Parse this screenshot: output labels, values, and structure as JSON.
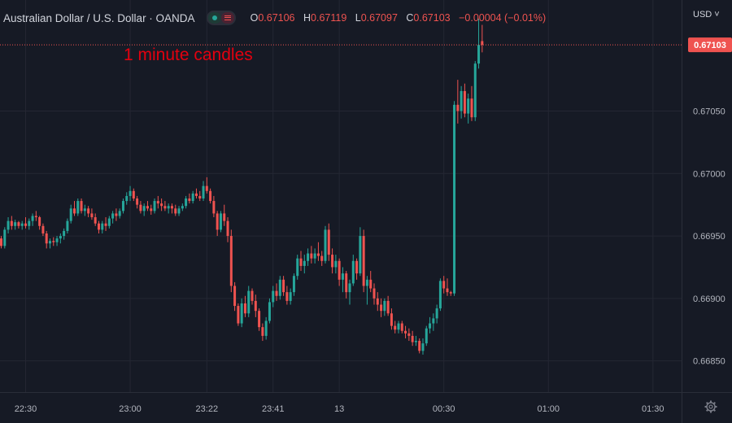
{
  "header": {
    "symbol": "Australian Dollar / U.S. Dollar · OANDA",
    "ohlc": [
      {
        "key": "O",
        "value": "0.67106"
      },
      {
        "key": "H",
        "value": "0.67119"
      },
      {
        "key": "L",
        "value": "0.67097"
      },
      {
        "key": "C",
        "value": "0.67103"
      }
    ],
    "change": "−0.00004 (−0.01%)"
  },
  "annotation": "1 minute candles",
  "currency_selector": "USD",
  "colors": {
    "up": "#26a69a",
    "down": "#ef5350",
    "background": "#161a25",
    "grid": "#242733",
    "annotation": "#e3000f"
  },
  "chart_data": {
    "type": "candlestick",
    "ylim": [
      0.66825,
      0.67135
    ],
    "y_ticks": [
      "0.66850",
      "0.66900",
      "0.66950",
      "0.67000",
      "0.67050"
    ],
    "x_ticks": [
      {
        "label": "22:30",
        "index": 7
      },
      {
        "label": "23:00",
        "index": 37
      },
      {
        "label": "23:22",
        "index": 59
      },
      {
        "label": "23:41",
        "index": 78
      },
      {
        "label": "13",
        "index": 97
      },
      {
        "label": "00:30",
        "index": 127
      },
      {
        "label": "01:00",
        "index": 157
      },
      {
        "label": "01:30",
        "index": 187
      }
    ],
    "last_price": "0.67103",
    "last_price_value": 0.67103,
    "grid": true,
    "candles": [
      [
        0.66948,
        0.6695,
        0.6694,
        0.66942
      ],
      [
        0.66942,
        0.66957,
        0.6694,
        0.66955
      ],
      [
        0.66955,
        0.66965,
        0.66952,
        0.66962
      ],
      [
        0.66962,
        0.66966,
        0.66955,
        0.66958
      ],
      [
        0.66958,
        0.66963,
        0.66955,
        0.66961
      ],
      [
        0.66961,
        0.66962,
        0.66956,
        0.66958
      ],
      [
        0.66958,
        0.66962,
        0.66955,
        0.6696
      ],
      [
        0.6696,
        0.66965,
        0.66956,
        0.66958
      ],
      [
        0.66958,
        0.66964,
        0.66955,
        0.66962
      ],
      [
        0.66962,
        0.66968,
        0.66958,
        0.66966
      ],
      [
        0.66966,
        0.6697,
        0.66962,
        0.66965
      ],
      [
        0.66965,
        0.66966,
        0.66955,
        0.66958
      ],
      [
        0.66958,
        0.6696,
        0.6695,
        0.66952
      ],
      [
        0.66952,
        0.66954,
        0.6694,
        0.66944
      ],
      [
        0.66944,
        0.66948,
        0.6694,
        0.66946
      ],
      [
        0.66946,
        0.66949,
        0.66942,
        0.66945
      ],
      [
        0.66945,
        0.6695,
        0.66942,
        0.66948
      ],
      [
        0.66948,
        0.66952,
        0.66944,
        0.6695
      ],
      [
        0.6695,
        0.66956,
        0.66947,
        0.66954
      ],
      [
        0.66954,
        0.66964,
        0.66952,
        0.66962
      ],
      [
        0.66962,
        0.66975,
        0.6696,
        0.66972
      ],
      [
        0.66972,
        0.66978,
        0.66966,
        0.66968
      ],
      [
        0.66968,
        0.6698,
        0.66966,
        0.66978
      ],
      [
        0.66978,
        0.6698,
        0.66968,
        0.6697
      ],
      [
        0.6697,
        0.66975,
        0.66966,
        0.66972
      ],
      [
        0.66972,
        0.66974,
        0.66965,
        0.66968
      ],
      [
        0.66968,
        0.66972,
        0.66963,
        0.66965
      ],
      [
        0.66965,
        0.66968,
        0.66958,
        0.6696
      ],
      [
        0.6696,
        0.66962,
        0.66952,
        0.66955
      ],
      [
        0.66955,
        0.66962,
        0.66952,
        0.6696
      ],
      [
        0.6696,
        0.66965,
        0.66954,
        0.66958
      ],
      [
        0.66958,
        0.66966,
        0.66956,
        0.66964
      ],
      [
        0.66964,
        0.6697,
        0.6696,
        0.66968
      ],
      [
        0.66968,
        0.66972,
        0.66962,
        0.66966
      ],
      [
        0.66966,
        0.66972,
        0.66964,
        0.6697
      ],
      [
        0.6697,
        0.6698,
        0.66968,
        0.66978
      ],
      [
        0.66978,
        0.66985,
        0.66975,
        0.66982
      ],
      [
        0.66982,
        0.6699,
        0.66978,
        0.66986
      ],
      [
        0.66986,
        0.66988,
        0.66978,
        0.6698
      ],
      [
        0.6698,
        0.66982,
        0.66972,
        0.66975
      ],
      [
        0.66975,
        0.66978,
        0.66968,
        0.6697
      ],
      [
        0.6697,
        0.66976,
        0.66966,
        0.66974
      ],
      [
        0.66974,
        0.66978,
        0.6697,
        0.66972
      ],
      [
        0.66972,
        0.66975,
        0.66967,
        0.6697
      ],
      [
        0.6697,
        0.6698,
        0.66968,
        0.66978
      ],
      [
        0.66978,
        0.66982,
        0.66972,
        0.66976
      ],
      [
        0.66976,
        0.6698,
        0.6697,
        0.66974
      ],
      [
        0.66974,
        0.66978,
        0.6697,
        0.66972
      ],
      [
        0.66972,
        0.66976,
        0.66968,
        0.66974
      ],
      [
        0.66974,
        0.66976,
        0.66968,
        0.66972
      ],
      [
        0.66972,
        0.66975,
        0.66966,
        0.66968
      ],
      [
        0.66968,
        0.66974,
        0.66966,
        0.66972
      ],
      [
        0.66972,
        0.66976,
        0.6697,
        0.66974
      ],
      [
        0.66974,
        0.66982,
        0.66972,
        0.6698
      ],
      [
        0.6698,
        0.66984,
        0.66976,
        0.66978
      ],
      [
        0.66978,
        0.66986,
        0.66976,
        0.66984
      ],
      [
        0.66984,
        0.66988,
        0.6698,
        0.66982
      ],
      [
        0.66982,
        0.66986,
        0.66978,
        0.6698
      ],
      [
        0.6698,
        0.66994,
        0.66978,
        0.6699
      ],
      [
        0.6699,
        0.66997,
        0.66984,
        0.66986
      ],
      [
        0.66986,
        0.66988,
        0.66976,
        0.66978
      ],
      [
        0.66978,
        0.66982,
        0.66965,
        0.66968
      ],
      [
        0.66968,
        0.6697,
        0.6695,
        0.66955
      ],
      [
        0.66955,
        0.6697,
        0.66953,
        0.66968
      ],
      [
        0.66968,
        0.66975,
        0.66958,
        0.66962
      ],
      [
        0.66962,
        0.66965,
        0.66945,
        0.6695
      ],
      [
        0.6695,
        0.66955,
        0.66905,
        0.6691
      ],
      [
        0.6691,
        0.66913,
        0.6689,
        0.66894
      ],
      [
        0.66894,
        0.66896,
        0.66878,
        0.6688
      ],
      [
        0.6688,
        0.669,
        0.66877,
        0.66896
      ],
      [
        0.66896,
        0.66902,
        0.66885,
        0.66888
      ],
      [
        0.66888,
        0.6691,
        0.66885,
        0.66906
      ],
      [
        0.66906,
        0.66908,
        0.66895,
        0.66898
      ],
      [
        0.66898,
        0.66903,
        0.66885,
        0.6689
      ],
      [
        0.6689,
        0.66892,
        0.66874,
        0.66877
      ],
      [
        0.66877,
        0.6688,
        0.66866,
        0.6687
      ],
      [
        0.6687,
        0.66885,
        0.66867,
        0.66882
      ],
      [
        0.66882,
        0.669,
        0.6688,
        0.66897
      ],
      [
        0.66897,
        0.6691,
        0.66893,
        0.66906
      ],
      [
        0.66906,
        0.66912,
        0.66898,
        0.66902
      ],
      [
        0.66902,
        0.66918,
        0.66899,
        0.66915
      ],
      [
        0.66915,
        0.66918,
        0.66902,
        0.66905
      ],
      [
        0.66905,
        0.6691,
        0.66895,
        0.66898
      ],
      [
        0.66898,
        0.66908,
        0.66895,
        0.66905
      ],
      [
        0.66905,
        0.6692,
        0.66902,
        0.66918
      ],
      [
        0.66918,
        0.66935,
        0.66915,
        0.66932
      ],
      [
        0.66932,
        0.66938,
        0.66922,
        0.66926
      ],
      [
        0.66926,
        0.66935,
        0.6692,
        0.6693
      ],
      [
        0.6693,
        0.6694,
        0.66926,
        0.66936
      ],
      [
        0.66936,
        0.66942,
        0.66928,
        0.66932
      ],
      [
        0.66932,
        0.6694,
        0.66928,
        0.66936
      ],
      [
        0.66936,
        0.66945,
        0.6693,
        0.66934
      ],
      [
        0.66934,
        0.66938,
        0.66926,
        0.6693
      ],
      [
        0.6693,
        0.66958,
        0.66928,
        0.66955
      ],
      [
        0.66955,
        0.6696,
        0.6693,
        0.66935
      ],
      [
        0.66935,
        0.6694,
        0.6692,
        0.66925
      ],
      [
        0.66925,
        0.66935,
        0.6692,
        0.6693
      ],
      [
        0.6693,
        0.66932,
        0.6691,
        0.66915
      ],
      [
        0.66915,
        0.66925,
        0.66905,
        0.6692
      ],
      [
        0.6692,
        0.66922,
        0.669,
        0.66905
      ],
      [
        0.66905,
        0.66915,
        0.66895,
        0.66912
      ],
      [
        0.66912,
        0.66935,
        0.6691,
        0.6693
      ],
      [
        0.6693,
        0.66932,
        0.66915,
        0.6692
      ],
      [
        0.6692,
        0.66957,
        0.66918,
        0.6695
      ],
      [
        0.6695,
        0.66955,
        0.66905,
        0.6691
      ],
      [
        0.6691,
        0.66918,
        0.66895,
        0.66915
      ],
      [
        0.66915,
        0.66922,
        0.66905,
        0.66908
      ],
      [
        0.66908,
        0.66912,
        0.66895,
        0.669
      ],
      [
        0.669,
        0.66905,
        0.6689,
        0.66895
      ],
      [
        0.66895,
        0.669,
        0.66885,
        0.6689
      ],
      [
        0.6689,
        0.669,
        0.66886,
        0.66898
      ],
      [
        0.66898,
        0.66902,
        0.66886,
        0.66888
      ],
      [
        0.66888,
        0.66892,
        0.66875,
        0.66878
      ],
      [
        0.66878,
        0.66882,
        0.66872,
        0.66875
      ],
      [
        0.66875,
        0.66882,
        0.66872,
        0.6688
      ],
      [
        0.6688,
        0.66882,
        0.66872,
        0.66874
      ],
      [
        0.66874,
        0.66878,
        0.66868,
        0.66872
      ],
      [
        0.66872,
        0.66876,
        0.66866,
        0.6687
      ],
      [
        0.6687,
        0.66874,
        0.66862,
        0.66865
      ],
      [
        0.66865,
        0.6687,
        0.66862,
        0.66866
      ],
      [
        0.66866,
        0.66868,
        0.66856,
        0.66858
      ],
      [
        0.66858,
        0.66868,
        0.66855,
        0.66864
      ],
      [
        0.66864,
        0.66878,
        0.66862,
        0.66876
      ],
      [
        0.66876,
        0.66885,
        0.66872,
        0.6688
      ],
      [
        0.6688,
        0.66888,
        0.66874,
        0.66884
      ],
      [
        0.66884,
        0.66895,
        0.6688,
        0.66892
      ],
      [
        0.66892,
        0.66916,
        0.6689,
        0.66914
      ],
      [
        0.66914,
        0.66918,
        0.66904,
        0.66908
      ],
      [
        0.66908,
        0.66916,
        0.66902,
        0.66905
      ],
      [
        0.66905,
        0.66906,
        0.66902,
        0.66904
      ],
      [
        0.66904,
        0.67058,
        0.66902,
        0.67055
      ],
      [
        0.67055,
        0.67075,
        0.6704,
        0.6705
      ],
      [
        0.6705,
        0.6707,
        0.67044,
        0.67066
      ],
      [
        0.67066,
        0.67072,
        0.67045,
        0.67048
      ],
      [
        0.67048,
        0.67064,
        0.6704,
        0.6706
      ],
      [
        0.6706,
        0.6707,
        0.67042,
        0.67045
      ],
      [
        0.67045,
        0.6709,
        0.67042,
        0.67088
      ],
      [
        0.67088,
        0.67124,
        0.67084,
        0.67103
      ],
      [
        0.67106,
        0.67119,
        0.67097,
        0.67103
      ]
    ]
  }
}
